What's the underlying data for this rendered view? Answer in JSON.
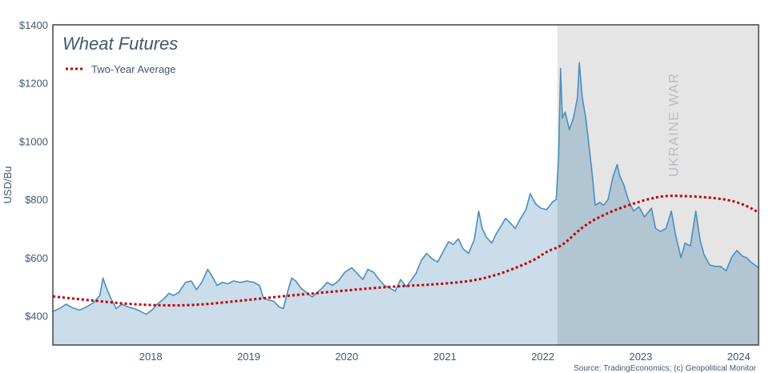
{
  "chart_data": {
    "type": "line",
    "title": "Wheat Futures",
    "ylabel": "USD/Bu",
    "ylim": [
      300,
      1400
    ],
    "xlim": [
      "2017-01-01",
      "2024-03-15"
    ],
    "y_ticks": [
      {
        "value": 400,
        "label": "$400"
      },
      {
        "value": 600,
        "label": "$600"
      },
      {
        "value": 800,
        "label": "$800"
      },
      {
        "value": 1000,
        "label": "$1000"
      },
      {
        "value": 1200,
        "label": "$1200"
      },
      {
        "value": 1400,
        "label": "$1400"
      }
    ],
    "x_ticks": [
      {
        "date": "2018-01-01",
        "label": "2018"
      },
      {
        "date": "2019-01-01",
        "label": "2019"
      },
      {
        "date": "2020-01-01",
        "label": "2020"
      },
      {
        "date": "2021-01-01",
        "label": "2021"
      },
      {
        "date": "2022-01-01",
        "label": "2022"
      },
      {
        "date": "2023-01-01",
        "label": "2023"
      },
      {
        "date": "2024-01-01",
        "label": "2024"
      }
    ],
    "legend": {
      "placement": "top-left",
      "label": "Two-Year Average"
    },
    "shaded_region": {
      "start": "2022-02-24",
      "end": "2024-03-15",
      "label": "UKRAINE WAR",
      "color": "#e5e5e5"
    },
    "series": [
      {
        "name": "Wheat Futures",
        "style": "line-filled",
        "color": "#4a8fbe",
        "fill": "#cbdcea",
        "points": [
          [
            "2017-01-01",
            415
          ],
          [
            "2017-01-25",
            425
          ],
          [
            "2017-02-20",
            440
          ],
          [
            "2017-03-15",
            428
          ],
          [
            "2017-04-10",
            420
          ],
          [
            "2017-05-05",
            430
          ],
          [
            "2017-06-01",
            445
          ],
          [
            "2017-06-25",
            470
          ],
          [
            "2017-07-07",
            530
          ],
          [
            "2017-07-20",
            495
          ],
          [
            "2017-08-05",
            460
          ],
          [
            "2017-08-25",
            425
          ],
          [
            "2017-09-15",
            440
          ],
          [
            "2017-10-10",
            430
          ],
          [
            "2017-11-01",
            425
          ],
          [
            "2017-11-25",
            415
          ],
          [
            "2017-12-15",
            405
          ],
          [
            "2018-01-05",
            420
          ],
          [
            "2018-01-25",
            440
          ],
          [
            "2018-02-20",
            460
          ],
          [
            "2018-03-10",
            478
          ],
          [
            "2018-03-25",
            470
          ],
          [
            "2018-04-15",
            480
          ],
          [
            "2018-05-10",
            515
          ],
          [
            "2018-06-01",
            520
          ],
          [
            "2018-06-20",
            490
          ],
          [
            "2018-07-10",
            515
          ],
          [
            "2018-08-01",
            560
          ],
          [
            "2018-08-15",
            540
          ],
          [
            "2018-09-05",
            505
          ],
          [
            "2018-09-25",
            515
          ],
          [
            "2018-10-15",
            510
          ],
          [
            "2018-11-05",
            520
          ],
          [
            "2018-12-01",
            515
          ],
          [
            "2018-12-25",
            520
          ],
          [
            "2019-01-20",
            515
          ],
          [
            "2019-02-10",
            505
          ],
          [
            "2019-02-25",
            460
          ],
          [
            "2019-03-15",
            455
          ],
          [
            "2019-04-05",
            450
          ],
          [
            "2019-04-25",
            430
          ],
          [
            "2019-05-10",
            425
          ],
          [
            "2019-05-25",
            480
          ],
          [
            "2019-06-10",
            530
          ],
          [
            "2019-06-25",
            520
          ],
          [
            "2019-07-15",
            495
          ],
          [
            "2019-08-05",
            480
          ],
          [
            "2019-08-25",
            465
          ],
          [
            "2019-09-10",
            478
          ],
          [
            "2019-10-01",
            495
          ],
          [
            "2019-10-20",
            515
          ],
          [
            "2019-11-10",
            505
          ],
          [
            "2019-12-01",
            520
          ],
          [
            "2019-12-25",
            550
          ],
          [
            "2020-01-20",
            565
          ],
          [
            "2020-02-10",
            545
          ],
          [
            "2020-03-01",
            525
          ],
          [
            "2020-03-20",
            560
          ],
          [
            "2020-04-10",
            550
          ],
          [
            "2020-05-01",
            525
          ],
          [
            "2020-05-20",
            505
          ],
          [
            "2020-06-10",
            495
          ],
          [
            "2020-06-30",
            485
          ],
          [
            "2020-07-20",
            525
          ],
          [
            "2020-08-10",
            500
          ],
          [
            "2020-08-30",
            525
          ],
          [
            "2020-09-15",
            545
          ],
          [
            "2020-10-05",
            590
          ],
          [
            "2020-10-25",
            615
          ],
          [
            "2020-11-15",
            595
          ],
          [
            "2020-12-05",
            585
          ],
          [
            "2020-12-25",
            620
          ],
          [
            "2021-01-15",
            655
          ],
          [
            "2021-02-01",
            645
          ],
          [
            "2021-02-20",
            665
          ],
          [
            "2021-03-10",
            630
          ],
          [
            "2021-03-30",
            615
          ],
          [
            "2021-04-20",
            660
          ],
          [
            "2021-05-07",
            760
          ],
          [
            "2021-05-20",
            700
          ],
          [
            "2021-06-05",
            670
          ],
          [
            "2021-06-25",
            650
          ],
          [
            "2021-07-10",
            680
          ],
          [
            "2021-07-30",
            710
          ],
          [
            "2021-08-15",
            735
          ],
          [
            "2021-09-01",
            720
          ],
          [
            "2021-09-20",
            700
          ],
          [
            "2021-10-10",
            735
          ],
          [
            "2021-10-30",
            765
          ],
          [
            "2021-11-15",
            820
          ],
          [
            "2021-12-05",
            785
          ],
          [
            "2021-12-25",
            770
          ],
          [
            "2022-01-15",
            765
          ],
          [
            "2022-02-05",
            790
          ],
          [
            "2022-02-20",
            800
          ],
          [
            "2022-03-01",
            950
          ],
          [
            "2022-03-08",
            1250
          ],
          [
            "2022-03-15",
            1080
          ],
          [
            "2022-03-25",
            1100
          ],
          [
            "2022-04-10",
            1040
          ],
          [
            "2022-04-25",
            1080
          ],
          [
            "2022-05-10",
            1150
          ],
          [
            "2022-05-17",
            1270
          ],
          [
            "2022-05-28",
            1150
          ],
          [
            "2022-06-10",
            1080
          ],
          [
            "2022-06-25",
            960
          ],
          [
            "2022-07-05",
            880
          ],
          [
            "2022-07-15",
            780
          ],
          [
            "2022-08-01",
            790
          ],
          [
            "2022-08-15",
            780
          ],
          [
            "2022-09-01",
            800
          ],
          [
            "2022-09-20",
            880
          ],
          [
            "2022-10-05",
            920
          ],
          [
            "2022-10-15",
            880
          ],
          [
            "2022-10-30",
            850
          ],
          [
            "2022-11-15",
            800
          ],
          [
            "2022-12-05",
            760
          ],
          [
            "2022-12-25",
            775
          ],
          [
            "2023-01-15",
            740
          ],
          [
            "2023-02-10",
            770
          ],
          [
            "2023-02-25",
            700
          ],
          [
            "2023-03-15",
            690
          ],
          [
            "2023-04-05",
            700
          ],
          [
            "2023-04-25",
            760
          ],
          [
            "2023-05-10",
            680
          ],
          [
            "2023-05-31",
            600
          ],
          [
            "2023-06-15",
            650
          ],
          [
            "2023-07-05",
            640
          ],
          [
            "2023-07-25",
            760
          ],
          [
            "2023-08-10",
            660
          ],
          [
            "2023-08-25",
            610
          ],
          [
            "2023-09-15",
            575
          ],
          [
            "2023-10-05",
            570
          ],
          [
            "2023-10-25",
            570
          ],
          [
            "2023-11-15",
            555
          ],
          [
            "2023-12-05",
            600
          ],
          [
            "2023-12-25",
            625
          ],
          [
            "2024-01-15",
            605
          ],
          [
            "2024-01-30",
            600
          ],
          [
            "2024-02-15",
            585
          ],
          [
            "2024-03-01",
            575
          ],
          [
            "2024-03-15",
            565
          ]
        ]
      },
      {
        "name": "Two-Year Average",
        "style": "dotted",
        "color": "#c00000",
        "points": [
          [
            "2017-01-01",
            467
          ],
          [
            "2017-06-01",
            452
          ],
          [
            "2017-12-01",
            437
          ],
          [
            "2018-06-01",
            435
          ],
          [
            "2018-12-01",
            452
          ],
          [
            "2019-06-01",
            470
          ],
          [
            "2019-12-01",
            485
          ],
          [
            "2020-06-01",
            500
          ],
          [
            "2020-12-01",
            508
          ],
          [
            "2021-06-01",
            525
          ],
          [
            "2021-12-01",
            590
          ],
          [
            "2022-01-15",
            622
          ],
          [
            "2022-03-15",
            640
          ],
          [
            "2022-06-01",
            710
          ],
          [
            "2022-09-01",
            755
          ],
          [
            "2022-12-01",
            785
          ],
          [
            "2023-02-01",
            802
          ],
          [
            "2023-04-01",
            813
          ],
          [
            "2023-06-01",
            812
          ],
          [
            "2023-09-01",
            808
          ],
          [
            "2023-12-01",
            798
          ],
          [
            "2024-02-01",
            778
          ],
          [
            "2024-03-15",
            755
          ]
        ]
      }
    ]
  },
  "source": "Source: TradingEconomics; (c) Geopolitical Monitor"
}
